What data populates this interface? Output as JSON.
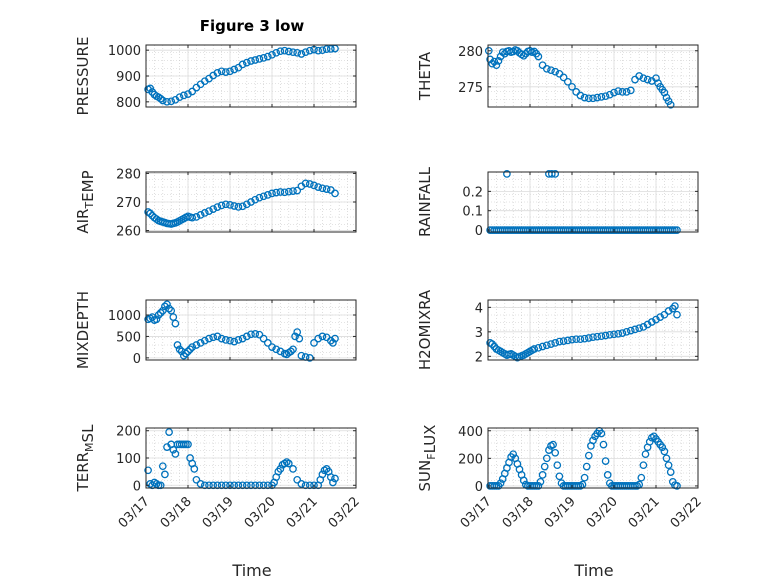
{
  "figure": {
    "title": "Figure 3 low",
    "xlabel": "Time",
    "series_color": "#0072BD",
    "x_ticks": [
      "03/17",
      "03/18",
      "03/19",
      "03/20",
      "03/21",
      "03/22"
    ]
  },
  "chart_data": [
    {
      "type": "scatter",
      "title": "Figure 3 low",
      "ylabel": "PRESSURE",
      "ylabel_parts": [
        {
          "t": "PRESSURE",
          "sub": false
        }
      ],
      "xlim": [
        0,
        5
      ],
      "ylim": [
        780,
        1020
      ],
      "yticks": [
        800,
        900,
        1000
      ],
      "yticklabels": [
        "800",
        "900",
        "1000"
      ],
      "grid": true,
      "xticklabels_visible": false,
      "x": [
        0.05,
        0.1,
        0.15,
        0.2,
        0.25,
        0.3,
        0.35,
        0.4,
        0.5,
        0.6,
        0.7,
        0.8,
        0.9,
        1.0,
        1.1,
        1.2,
        1.3,
        1.4,
        1.5,
        1.6,
        1.7,
        1.8,
        1.9,
        2.0,
        2.1,
        2.2,
        2.3,
        2.4,
        2.5,
        2.6,
        2.7,
        2.8,
        2.9,
        3.0,
        3.1,
        3.2,
        3.3,
        3.4,
        3.5,
        3.6,
        3.7,
        3.8,
        3.9,
        4.0,
        4.1,
        4.2,
        4.3,
        4.4,
        4.5
      ],
      "y": [
        848,
        852,
        838,
        828,
        822,
        818,
        812,
        805,
        800,
        802,
        808,
        818,
        825,
        830,
        840,
        855,
        868,
        880,
        890,
        902,
        912,
        918,
        915,
        918,
        925,
        932,
        945,
        952,
        958,
        962,
        966,
        970,
        975,
        982,
        990,
        996,
        998,
        995,
        992,
        990,
        985,
        992,
        998,
        1002,
        998,
        1000,
        1004,
        1005,
        1006
      ]
    },
    {
      "type": "scatter",
      "ylabel": "THETA",
      "ylabel_parts": [
        {
          "t": "THETA",
          "sub": false
        }
      ],
      "xlim": [
        0,
        5
      ],
      "ylim": [
        272.2,
        280.8
      ],
      "yticks": [
        275,
        280
      ],
      "yticklabels": [
        "275",
        "280"
      ],
      "grid": true,
      "xticklabels_visible": false,
      "x": [
        0.02,
        0.05,
        0.1,
        0.15,
        0.2,
        0.25,
        0.3,
        0.35,
        0.4,
        0.45,
        0.5,
        0.55,
        0.6,
        0.65,
        0.7,
        0.75,
        0.8,
        0.85,
        0.9,
        0.95,
        1.0,
        1.05,
        1.1,
        1.15,
        1.2,
        1.3,
        1.4,
        1.5,
        1.6,
        1.7,
        1.8,
        1.9,
        2.0,
        2.1,
        2.2,
        2.3,
        2.4,
        2.5,
        2.6,
        2.7,
        2.8,
        2.9,
        3.0,
        3.1,
        3.2,
        3.3,
        3.4,
        3.5,
        3.6,
        3.7,
        3.8,
        3.9,
        4.0,
        4.05,
        4.1,
        4.15,
        4.2,
        4.25,
        4.3,
        4.35
      ],
      "y": [
        280.0,
        278.8,
        278.2,
        278.5,
        278.0,
        278.6,
        279.2,
        279.8,
        279.6,
        279.9,
        280.0,
        279.8,
        279.9,
        280.1,
        280.0,
        279.7,
        279.5,
        279.3,
        279.6,
        279.9,
        280.0,
        279.8,
        279.9,
        279.6,
        279.2,
        278.0,
        277.5,
        277.3,
        277.1,
        276.8,
        276.3,
        275.7,
        275.0,
        274.3,
        273.8,
        273.5,
        273.4,
        273.4,
        273.5,
        273.6,
        273.7,
        273.9,
        274.2,
        274.4,
        274.3,
        274.3,
        274.5,
        276.0,
        276.5,
        276.2,
        276.0,
        275.8,
        276.2,
        275.5,
        275.0,
        274.6,
        274.2,
        273.5,
        273.0,
        272.5
      ]
    },
    {
      "type": "scatter",
      "ylabel": "AIR_TEMP",
      "ylabel_parts": [
        {
          "t": "AIR",
          "sub": false
        },
        {
          "t": "T",
          "sub": true
        },
        {
          "t": "EMP",
          "sub": false
        }
      ],
      "xlim": [
        0,
        5
      ],
      "ylim": [
        259.5,
        280.5
      ],
      "yticks": [
        260,
        270,
        280
      ],
      "yticklabels": [
        "260",
        "270",
        "280"
      ],
      "grid": true,
      "xticklabels_visible": false,
      "x": [
        0.05,
        0.1,
        0.15,
        0.2,
        0.25,
        0.3,
        0.35,
        0.4,
        0.45,
        0.5,
        0.55,
        0.6,
        0.65,
        0.7,
        0.75,
        0.8,
        0.85,
        0.9,
        0.95,
        1.0,
        1.05,
        1.1,
        1.2,
        1.3,
        1.4,
        1.5,
        1.6,
        1.7,
        1.8,
        1.9,
        2.0,
        2.1,
        2.2,
        2.3,
        2.4,
        2.5,
        2.6,
        2.7,
        2.8,
        2.9,
        3.0,
        3.1,
        3.2,
        3.3,
        3.4,
        3.5,
        3.6,
        3.7,
        3.8,
        3.9,
        4.0,
        4.1,
        4.2,
        4.3,
        4.4,
        4.5
      ],
      "y": [
        266.5,
        266.0,
        265.2,
        264.5,
        264.0,
        263.5,
        263.2,
        263.0,
        262.8,
        262.5,
        262.4,
        262.3,
        262.5,
        262.7,
        263.0,
        263.4,
        263.8,
        264.2,
        264.6,
        265.0,
        264.7,
        264.5,
        264.8,
        265.5,
        266.2,
        266.8,
        267.5,
        268.2,
        268.8,
        269.2,
        269.0,
        268.6,
        268.3,
        268.5,
        269.2,
        270.0,
        270.8,
        271.5,
        272.0,
        272.5,
        273.0,
        273.3,
        273.5,
        273.4,
        273.6,
        273.8,
        274.0,
        275.5,
        276.5,
        276.3,
        275.8,
        275.2,
        274.8,
        274.5,
        274.2,
        273.0
      ]
    },
    {
      "type": "scatter",
      "ylabel": "RAINFALL",
      "ylabel_parts": [
        {
          "t": "RAINFALL",
          "sub": false
        }
      ],
      "xlim": [
        0,
        5
      ],
      "ylim": [
        -0.01,
        0.3
      ],
      "yticks": [
        0,
        0.1,
        0.2
      ],
      "yticklabels": [
        "0",
        "0.1",
        "0.2"
      ],
      "grid": true,
      "xticklabels_visible": false,
      "x": [
        0.05,
        0.1,
        0.15,
        0.2,
        0.25,
        0.3,
        0.35,
        0.4,
        0.45,
        0.5,
        0.55,
        0.6,
        0.65,
        0.7,
        0.75,
        0.8,
        0.85,
        0.9,
        0.95,
        1.0,
        1.05,
        1.1,
        1.15,
        1.2,
        1.25,
        1.3,
        1.35,
        1.4,
        1.45,
        1.5,
        1.55,
        1.6,
        1.65,
        1.7,
        1.75,
        1.8,
        1.85,
        1.9,
        1.95,
        2.0,
        2.05,
        2.1,
        2.15,
        2.2,
        2.25,
        2.3,
        2.35,
        2.4,
        2.45,
        2.5,
        2.55,
        2.6,
        2.65,
        2.7,
        2.75,
        2.8,
        2.85,
        2.9,
        2.95,
        3.0,
        3.05,
        3.1,
        3.15,
        3.2,
        3.25,
        3.3,
        3.35,
        3.4,
        3.45,
        3.5,
        3.55,
        3.6,
        3.65,
        3.7,
        3.75,
        3.8,
        3.85,
        3.9,
        3.95,
        4.0,
        4.05,
        4.1,
        4.15,
        4.2,
        4.25,
        4.3,
        4.35,
        4.4,
        4.45,
        4.5,
        0.45,
        1.45,
        1.52,
        1.6
      ],
      "y": [
        0,
        0,
        0,
        0,
        0,
        0,
        0,
        0,
        0,
        0,
        0,
        0,
        0,
        0,
        0,
        0,
        0,
        0,
        0,
        0,
        0,
        0,
        0,
        0,
        0,
        0,
        0,
        0,
        0,
        0,
        0,
        0,
        0,
        0,
        0,
        0,
        0,
        0,
        0,
        0,
        0,
        0,
        0,
        0,
        0,
        0,
        0,
        0,
        0,
        0,
        0,
        0,
        0,
        0,
        0,
        0,
        0,
        0,
        0,
        0,
        0,
        0,
        0,
        0,
        0,
        0,
        0,
        0,
        0,
        0,
        0,
        0,
        0,
        0,
        0,
        0,
        0,
        0,
        0,
        0,
        0,
        0,
        0,
        0,
        0,
        0,
        0,
        0,
        0,
        0,
        0.29,
        0.29,
        0.29,
        0.29
      ]
    },
    {
      "type": "scatter",
      "ylabel": "MIXDEPTH",
      "ylabel_parts": [
        {
          "t": "MIXDEPTH",
          "sub": false
        }
      ],
      "xlim": [
        0,
        5
      ],
      "ylim": [
        -50,
        1350
      ],
      "yticks": [
        0,
        500,
        1000
      ],
      "yticklabels": [
        "0",
        "500",
        "1000"
      ],
      "grid": true,
      "xticklabels_visible": false,
      "x": [
        0.05,
        0.1,
        0.15,
        0.2,
        0.25,
        0.3,
        0.35,
        0.4,
        0.45,
        0.5,
        0.55,
        0.6,
        0.65,
        0.7,
        0.75,
        0.8,
        0.85,
        0.9,
        0.95,
        1.0,
        1.05,
        1.1,
        1.2,
        1.3,
        1.4,
        1.5,
        1.6,
        1.7,
        1.8,
        1.9,
        2.0,
        2.1,
        2.2,
        2.3,
        2.4,
        2.5,
        2.6,
        2.7,
        2.8,
        2.9,
        3.0,
        3.1,
        3.2,
        3.3,
        3.35,
        3.4,
        3.45,
        3.5,
        3.55,
        3.6,
        3.65,
        3.7,
        3.8,
        3.9,
        4.0,
        4.1,
        4.2,
        4.3,
        4.4,
        4.45,
        4.5
      ],
      "y": [
        900,
        920,
        950,
        880,
        900,
        1000,
        1050,
        1100,
        1200,
        1250,
        1150,
        1100,
        950,
        800,
        300,
        200,
        150,
        50,
        100,
        150,
        200,
        250,
        300,
        350,
        400,
        450,
        480,
        500,
        450,
        420,
        400,
        380,
        420,
        450,
        500,
        550,
        560,
        540,
        450,
        350,
        250,
        200,
        150,
        100,
        80,
        120,
        150,
        200,
        500,
        600,
        450,
        50,
        20,
        0,
        350,
        450,
        500,
        480,
        400,
        350,
        450
      ]
    },
    {
      "type": "scatter",
      "ylabel": "H2OMIXRA",
      "ylabel_parts": [
        {
          "t": "H2OMIXRA",
          "sub": false
        }
      ],
      "xlim": [
        0,
        5
      ],
      "ylim": [
        1.85,
        4.3
      ],
      "yticks": [
        2,
        3,
        4
      ],
      "yticklabels": [
        "2",
        "3",
        "4"
      ],
      "grid": true,
      "xticklabels_visible": false,
      "x": [
        0.05,
        0.1,
        0.15,
        0.2,
        0.25,
        0.3,
        0.35,
        0.4,
        0.45,
        0.5,
        0.55,
        0.6,
        0.65,
        0.7,
        0.75,
        0.8,
        0.85,
        0.9,
        0.95,
        1.0,
        1.05,
        1.1,
        1.2,
        1.3,
        1.4,
        1.5,
        1.6,
        1.7,
        1.8,
        1.9,
        2.0,
        2.1,
        2.2,
        2.3,
        2.4,
        2.5,
        2.6,
        2.7,
        2.8,
        2.9,
        3.0,
        3.1,
        3.2,
        3.3,
        3.4,
        3.5,
        3.6,
        3.7,
        3.8,
        3.9,
        4.0,
        4.1,
        4.2,
        4.3,
        4.4,
        4.45,
        4.5
      ],
      "y": [
        2.55,
        2.5,
        2.4,
        2.3,
        2.25,
        2.2,
        2.15,
        2.1,
        2.05,
        2.08,
        2.1,
        2.05,
        2.0,
        1.95,
        1.98,
        2.02,
        2.05,
        2.1,
        2.15,
        2.2,
        2.25,
        2.3,
        2.35,
        2.4,
        2.45,
        2.5,
        2.55,
        2.6,
        2.62,
        2.65,
        2.68,
        2.7,
        2.7,
        2.72,
        2.75,
        2.78,
        2.8,
        2.82,
        2.85,
        2.88,
        2.9,
        2.92,
        2.95,
        3.0,
        3.05,
        3.1,
        3.15,
        3.2,
        3.3,
        3.4,
        3.5,
        3.6,
        3.7,
        3.85,
        3.95,
        4.05,
        3.7
      ]
    },
    {
      "type": "scatter",
      "ylabel": "TERR_MSL",
      "ylabel_parts": [
        {
          "t": "TERR",
          "sub": false
        },
        {
          "t": "M",
          "sub": true
        },
        {
          "t": "SL",
          "sub": false
        }
      ],
      "xlim": [
        0,
        5
      ],
      "ylim": [
        -10,
        210
      ],
      "yticks": [
        0,
        100,
        200
      ],
      "yticklabels": [
        "0",
        "100",
        "200"
      ],
      "grid": true,
      "xticklabels_visible": true,
      "x": [
        0.05,
        0.1,
        0.15,
        0.2,
        0.25,
        0.3,
        0.35,
        0.4,
        0.45,
        0.5,
        0.55,
        0.6,
        0.65,
        0.7,
        0.75,
        0.8,
        0.85,
        0.9,
        0.95,
        1.0,
        1.05,
        1.1,
        1.15,
        1.2,
        1.3,
        1.4,
        1.5,
        1.6,
        1.7,
        1.8,
        1.9,
        2.0,
        2.1,
        2.2,
        2.3,
        2.4,
        2.5,
        2.6,
        2.7,
        2.8,
        2.9,
        3.0,
        3.05,
        3.1,
        3.15,
        3.2,
        3.25,
        3.3,
        3.35,
        3.4,
        3.5,
        3.6,
        3.7,
        3.8,
        3.9,
        4.0,
        4.1,
        4.15,
        4.2,
        4.25,
        4.3,
        4.35,
        4.4,
        4.45,
        4.5
      ],
      "y": [
        55,
        5,
        0,
        10,
        5,
        0,
        0,
        70,
        40,
        140,
        195,
        150,
        130,
        115,
        150,
        150,
        150,
        150,
        150,
        150,
        100,
        80,
        60,
        20,
        5,
        0,
        0,
        0,
        0,
        0,
        0,
        0,
        0,
        0,
        0,
        0,
        0,
        0,
        0,
        0,
        0,
        0,
        10,
        30,
        50,
        60,
        75,
        80,
        85,
        80,
        60,
        20,
        5,
        0,
        0,
        0,
        0,
        20,
        40,
        55,
        60,
        50,
        30,
        10,
        25
      ]
    },
    {
      "type": "scatter",
      "ylabel": "SUN_FLUX",
      "ylabel_parts": [
        {
          "t": "SUN",
          "sub": false
        },
        {
          "t": "F",
          "sub": true
        },
        {
          "t": "LUX",
          "sub": false
        }
      ],
      "xlim": [
        0,
        5
      ],
      "ylim": [
        -15,
        420
      ],
      "yticks": [
        0,
        200,
        400
      ],
      "yticklabels": [
        "0",
        "200",
        "400"
      ],
      "grid": true,
      "xticklabels_visible": true,
      "x": [
        0.05,
        0.1,
        0.15,
        0.2,
        0.25,
        0.3,
        0.35,
        0.4,
        0.45,
        0.5,
        0.55,
        0.6,
        0.65,
        0.7,
        0.75,
        0.8,
        0.85,
        0.9,
        0.95,
        1.0,
        1.05,
        1.1,
        1.15,
        1.2,
        1.25,
        1.3,
        1.35,
        1.4,
        1.45,
        1.5,
        1.55,
        1.6,
        1.65,
        1.7,
        1.75,
        1.8,
        1.85,
        1.9,
        1.95,
        2.0,
        2.05,
        2.1,
        2.15,
        2.2,
        2.25,
        2.3,
        2.35,
        2.4,
        2.45,
        2.5,
        2.55,
        2.6,
        2.65,
        2.7,
        2.75,
        2.8,
        2.85,
        2.9,
        2.95,
        3.0,
        3.05,
        3.1,
        3.15,
        3.2,
        3.25,
        3.3,
        3.35,
        3.4,
        3.45,
        3.5,
        3.55,
        3.6,
        3.65,
        3.7,
        3.75,
        3.8,
        3.85,
        3.9,
        3.95,
        4.0,
        4.05,
        4.1,
        4.15,
        4.2,
        4.25,
        4.3,
        4.35,
        4.4,
        4.45,
        4.5
      ],
      "y": [
        0,
        0,
        0,
        0,
        0,
        20,
        50,
        90,
        130,
        170,
        210,
        230,
        200,
        160,
        120,
        80,
        40,
        10,
        0,
        0,
        0,
        0,
        0,
        0,
        30,
        80,
        140,
        200,
        260,
        290,
        300,
        240,
        150,
        70,
        20,
        0,
        0,
        0,
        0,
        0,
        0,
        0,
        0,
        0,
        10,
        60,
        140,
        220,
        290,
        330,
        360,
        380,
        400,
        380,
        300,
        180,
        80,
        20,
        0,
        0,
        0,
        0,
        0,
        0,
        0,
        0,
        0,
        0,
        0,
        0,
        0,
        10,
        60,
        150,
        230,
        280,
        320,
        350,
        360,
        340,
        320,
        300,
        280,
        250,
        200,
        150,
        100,
        30,
        5,
        0
      ]
    }
  ]
}
